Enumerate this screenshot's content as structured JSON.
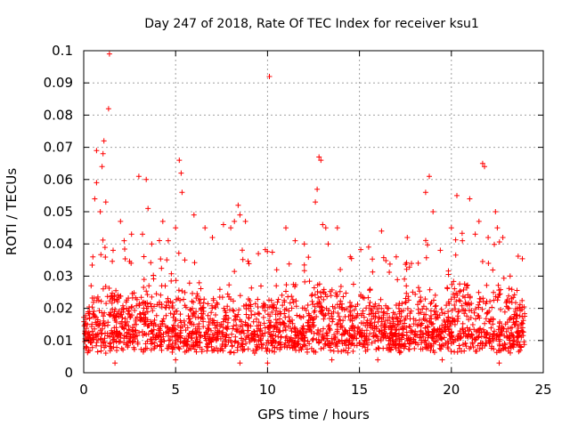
{
  "chart_data": {
    "type": "scatter",
    "title": "Day 247 of 2018, Rate Of TEC Index for receiver ksu1",
    "xlabel": "GPS time / hours",
    "ylabel": "ROTI / TECUs",
    "xlim": [
      0,
      25
    ],
    "ylim": [
      0,
      0.1
    ],
    "x_ticks": [
      0,
      5,
      10,
      15,
      20,
      25
    ],
    "x_tick_labels": [
      "0",
      "5",
      "10",
      "15",
      "20",
      "25"
    ],
    "y_ticks": [
      0,
      0.01,
      0.02,
      0.03,
      0.04,
      0.05,
      0.06,
      0.07,
      0.08,
      0.09,
      0.1
    ],
    "y_tick_labels": [
      "0",
      "0.01",
      "0.02",
      "0.03",
      "0.04",
      "0.05",
      "0.06",
      "0.07",
      "0.08",
      "0.09",
      "0.1"
    ],
    "grid": true,
    "marker": "plus",
    "color": "#ff0000",
    "series": [
      {
        "name": "ROTI",
        "bulk_range": {
          "x": [
            0,
            24
          ],
          "y_typical": [
            0.004,
            0.035
          ]
        },
        "points": [
          [
            0.1,
            0.012
          ],
          [
            0.2,
            0.015
          ],
          [
            0.4,
            0.027
          ],
          [
            0.5,
            0.036
          ],
          [
            0.6,
            0.054
          ],
          [
            0.7,
            0.059
          ],
          [
            0.7,
            0.069
          ],
          [
            0.9,
            0.05
          ],
          [
            1.0,
            0.064
          ],
          [
            1.05,
            0.068
          ],
          [
            1.1,
            0.072
          ],
          [
            1.2,
            0.053
          ],
          [
            1.35,
            0.082
          ],
          [
            1.4,
            0.099
          ],
          [
            1.6,
            0.038
          ],
          [
            2.0,
            0.047
          ],
          [
            2.2,
            0.041
          ],
          [
            2.6,
            0.043
          ],
          [
            3.0,
            0.061
          ],
          [
            3.2,
            0.043
          ],
          [
            3.4,
            0.06
          ],
          [
            3.5,
            0.051
          ],
          [
            3.7,
            0.04
          ],
          [
            4.3,
            0.047
          ],
          [
            4.6,
            0.041
          ],
          [
            5.0,
            0.045
          ],
          [
            5.2,
            0.066
          ],
          [
            5.3,
            0.062
          ],
          [
            5.35,
            0.056
          ],
          [
            5.5,
            0.035
          ],
          [
            6.0,
            0.049
          ],
          [
            6.6,
            0.045
          ],
          [
            7.0,
            0.042
          ],
          [
            7.6,
            0.046
          ],
          [
            8.0,
            0.045
          ],
          [
            8.2,
            0.047
          ],
          [
            8.4,
            0.052
          ],
          [
            8.5,
            0.049
          ],
          [
            8.8,
            0.047
          ],
          [
            9.5,
            0.037
          ],
          [
            10.1,
            0.092
          ],
          [
            10.5,
            0.032
          ],
          [
            11.0,
            0.045
          ],
          [
            11.5,
            0.041
          ],
          [
            12.0,
            0.04
          ],
          [
            12.6,
            0.053
          ],
          [
            12.7,
            0.057
          ],
          [
            12.8,
            0.067
          ],
          [
            12.9,
            0.066
          ],
          [
            13.0,
            0.046
          ],
          [
            13.3,
            0.04
          ],
          [
            13.8,
            0.045
          ],
          [
            14.5,
            0.036
          ],
          [
            15.5,
            0.039
          ],
          [
            16.2,
            0.044
          ],
          [
            17.0,
            0.036
          ],
          [
            17.6,
            0.042
          ],
          [
            18.2,
            0.034
          ],
          [
            18.6,
            0.056
          ],
          [
            18.8,
            0.061
          ],
          [
            19.0,
            0.05
          ],
          [
            19.4,
            0.038
          ],
          [
            20.0,
            0.045
          ],
          [
            20.3,
            0.055
          ],
          [
            20.6,
            0.041
          ],
          [
            21.0,
            0.054
          ],
          [
            21.3,
            0.043
          ],
          [
            21.5,
            0.047
          ],
          [
            21.7,
            0.065
          ],
          [
            21.8,
            0.064
          ],
          [
            22.0,
            0.042
          ],
          [
            22.4,
            0.05
          ],
          [
            22.5,
            0.045
          ],
          [
            22.8,
            0.042
          ],
          [
            23.2,
            0.03
          ],
          [
            23.6,
            0.02
          ],
          [
            23.8,
            0.015
          ],
          [
            22.6,
            0.003
          ],
          [
            10.0,
            0.003
          ],
          [
            8.5,
            0.003
          ],
          [
            1.7,
            0.003
          ],
          [
            5.0,
            0.004
          ],
          [
            13.5,
            0.004
          ],
          [
            16.0,
            0.004
          ],
          [
            19.5,
            0.004
          ]
        ]
      }
    ]
  }
}
